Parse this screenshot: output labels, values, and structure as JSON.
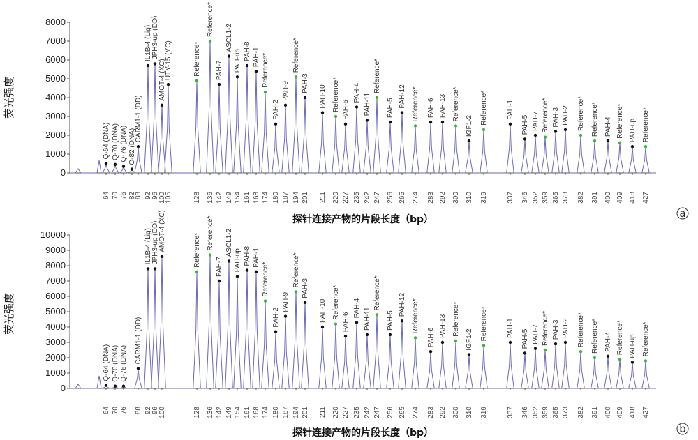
{
  "figure": {
    "panels": [
      "a",
      "b"
    ]
  },
  "chart_data": [
    {
      "type": "line",
      "panel_label": "a",
      "ylabel": "荧光强度",
      "xlabel": "探针连接产物的片段长度（bp）",
      "ylim": [
        0,
        8000
      ],
      "yticks": [
        0,
        1000,
        2000,
        3000,
        4000,
        5000,
        6000,
        7000,
        8000
      ],
      "x_ticks": [
        64,
        70,
        76,
        82,
        88,
        92,
        96,
        100,
        105,
        128,
        136,
        142,
        149,
        154,
        161,
        168,
        174,
        180,
        187,
        194,
        201,
        211,
        220,
        227,
        235,
        242,
        247,
        256,
        265,
        274,
        283,
        292,
        300,
        310,
        319,
        337,
        346,
        352,
        359,
        365,
        373,
        382,
        391,
        400,
        409,
        418,
        427
      ],
      "peaks": [
        {
          "x": 64,
          "y": 500,
          "label": "Q-64 (DNA)",
          "ref": false
        },
        {
          "x": 70,
          "y": 450,
          "label": "Q-70 (DNA)",
          "ref": false
        },
        {
          "x": 76,
          "y": 350,
          "label": "Q-76 (DNA)",
          "ref": false
        },
        {
          "x": 82,
          "y": 200,
          "label": "Q-82 (DNA)",
          "ref": false
        },
        {
          "x": 88,
          "y": 1400,
          "label": "CARM1-1 (DD)",
          "ref": false
        },
        {
          "x": 92,
          "y": 5700,
          "label": "IL1B-4 (Lig)",
          "ref": false
        },
        {
          "x": 96,
          "y": 5800,
          "label": "JPH3-up (DD)",
          "ref": false
        },
        {
          "x": 100,
          "y": 3600,
          "label": "AMOT-4 (XC)",
          "ref": false
        },
        {
          "x": 105,
          "y": 4700,
          "label": "UTY-15 (YC)",
          "ref": false
        },
        {
          "x": 128,
          "y": 4900,
          "label": "Reference*",
          "ref": true
        },
        {
          "x": 136,
          "y": 7000,
          "label": "Reference*",
          "ref": true
        },
        {
          "x": 142,
          "y": 4700,
          "label": "PAH-7",
          "ref": false
        },
        {
          "x": 149,
          "y": 6200,
          "label": "ASCL1-2",
          "ref": false
        },
        {
          "x": 154,
          "y": 5100,
          "label": "PAH-up",
          "ref": false
        },
        {
          "x": 161,
          "y": 5700,
          "label": "PAH-8",
          "ref": false
        },
        {
          "x": 168,
          "y": 5400,
          "label": "PAH-1",
          "ref": false
        },
        {
          "x": 174,
          "y": 4300,
          "label": "Reference*",
          "ref": true
        },
        {
          "x": 180,
          "y": 2600,
          "label": "PAH-2",
          "ref": false
        },
        {
          "x": 187,
          "y": 3600,
          "label": "PAH-9",
          "ref": false
        },
        {
          "x": 194,
          "y": 5100,
          "label": "Reference*",
          "ref": true
        },
        {
          "x": 201,
          "y": 4000,
          "label": "PAH-3",
          "ref": false
        },
        {
          "x": 211,
          "y": 3200,
          "label": "PAH-10",
          "ref": false
        },
        {
          "x": 220,
          "y": 3000,
          "label": "Reference*",
          "ref": true
        },
        {
          "x": 227,
          "y": 2600,
          "label": "PAH-6",
          "ref": false
        },
        {
          "x": 235,
          "y": 3500,
          "label": "PAH-4",
          "ref": false
        },
        {
          "x": 242,
          "y": 2800,
          "label": "PAH-11",
          "ref": false
        },
        {
          "x": 247,
          "y": 4000,
          "label": "Reference*",
          "ref": true
        },
        {
          "x": 256,
          "y": 2700,
          "label": "PAH-5",
          "ref": false
        },
        {
          "x": 265,
          "y": 3200,
          "label": "PAH-12",
          "ref": false
        },
        {
          "x": 274,
          "y": 2500,
          "label": "Reference*",
          "ref": true
        },
        {
          "x": 283,
          "y": 2700,
          "label": "PAH-6",
          "ref": false
        },
        {
          "x": 292,
          "y": 2700,
          "label": "PAH-13",
          "ref": false
        },
        {
          "x": 300,
          "y": 2500,
          "label": "Reference*",
          "ref": true
        },
        {
          "x": 310,
          "y": 1700,
          "label": "IGF1-2",
          "ref": false
        },
        {
          "x": 319,
          "y": 2300,
          "label": "Reference*",
          "ref": true
        },
        {
          "x": 337,
          "y": 2600,
          "label": "PAH-1",
          "ref": false
        },
        {
          "x": 346,
          "y": 1800,
          "label": "PAH-5",
          "ref": false
        },
        {
          "x": 352,
          "y": 2000,
          "label": "PAH-7",
          "ref": false
        },
        {
          "x": 359,
          "y": 1900,
          "label": "Reference*",
          "ref": true
        },
        {
          "x": 365,
          "y": 2200,
          "label": "PAH-3",
          "ref": false
        },
        {
          "x": 373,
          "y": 2300,
          "label": "PAH-2",
          "ref": false
        },
        {
          "x": 382,
          "y": 2000,
          "label": "Reference*",
          "ref": true
        },
        {
          "x": 391,
          "y": 1700,
          "label": "Reference*",
          "ref": true
        },
        {
          "x": 400,
          "y": 1700,
          "label": "PAH-4",
          "ref": false
        },
        {
          "x": 409,
          "y": 1600,
          "label": "Reference*",
          "ref": true
        },
        {
          "x": 418,
          "y": 1400,
          "label": "PAH-up",
          "ref": false
        },
        {
          "x": 427,
          "y": 1400,
          "label": "Reference*",
          "ref": true
        }
      ]
    },
    {
      "type": "line",
      "panel_label": "b",
      "ylabel": "荧光强度",
      "xlabel": "探针连接产物的片段长度（bp）",
      "ylim": [
        0,
        10000
      ],
      "yticks": [
        0,
        1000,
        2000,
        3000,
        4000,
        5000,
        6000,
        7000,
        8000,
        9000,
        10000
      ],
      "x_ticks": [
        64,
        70,
        76,
        88,
        92,
        96,
        100,
        128,
        136,
        142,
        149,
        154,
        161,
        168,
        174,
        180,
        187,
        194,
        201,
        211,
        220,
        227,
        235,
        242,
        247,
        256,
        265,
        274,
        283,
        292,
        300,
        310,
        319,
        337,
        346,
        352,
        359,
        365,
        373,
        382,
        391,
        400,
        409,
        418,
        427
      ],
      "peaks": [
        {
          "x": 64,
          "y": 200,
          "label": "Q-64 (DNA)",
          "ref": false
        },
        {
          "x": 70,
          "y": 150,
          "label": "Q-70 (DNA)",
          "ref": false
        },
        {
          "x": 76,
          "y": 150,
          "label": "Q-76 (DNA)",
          "ref": false
        },
        {
          "x": 88,
          "y": 1300,
          "label": "CARM1-1 (DD)",
          "ref": false
        },
        {
          "x": 92,
          "y": 7800,
          "label": "IL1B-4 (Lig)",
          "ref": false
        },
        {
          "x": 96,
          "y": 7800,
          "label": "JPH3-up (DD)",
          "ref": false
        },
        {
          "x": 100,
          "y": 8600,
          "label": "AMOT-4 (XC)",
          "ref": false
        },
        {
          "x": 128,
          "y": 7600,
          "label": "Reference*",
          "ref": true
        },
        {
          "x": 136,
          "y": 8700,
          "label": "Reference*",
          "ref": true
        },
        {
          "x": 142,
          "y": 7000,
          "label": "PAH-7",
          "ref": false
        },
        {
          "x": 149,
          "y": 8300,
          "label": "ASCL1-2",
          "ref": false
        },
        {
          "x": 154,
          "y": 7300,
          "label": "PAH-up",
          "ref": false
        },
        {
          "x": 161,
          "y": 7700,
          "label": "PAH-8",
          "ref": false
        },
        {
          "x": 168,
          "y": 7600,
          "label": "PAH-1",
          "ref": false
        },
        {
          "x": 174,
          "y": 5700,
          "label": "Reference*",
          "ref": true
        },
        {
          "x": 180,
          "y": 3700,
          "label": "PAH-2",
          "ref": false
        },
        {
          "x": 187,
          "y": 4700,
          "label": "PAH-9",
          "ref": false
        },
        {
          "x": 194,
          "y": 6300,
          "label": "Reference*",
          "ref": true
        },
        {
          "x": 201,
          "y": 5600,
          "label": "PAH-3",
          "ref": false
        },
        {
          "x": 211,
          "y": 4000,
          "label": "PAH-10",
          "ref": false
        },
        {
          "x": 220,
          "y": 4200,
          "label": "Reference*",
          "ref": true
        },
        {
          "x": 227,
          "y": 3400,
          "label": "PAH-6",
          "ref": false
        },
        {
          "x": 235,
          "y": 4300,
          "label": "PAH-4",
          "ref": false
        },
        {
          "x": 242,
          "y": 3500,
          "label": "PAH-11",
          "ref": false
        },
        {
          "x": 247,
          "y": 4800,
          "label": "Reference*",
          "ref": true
        },
        {
          "x": 256,
          "y": 3500,
          "label": "PAH-5",
          "ref": false
        },
        {
          "x": 265,
          "y": 4400,
          "label": "PAH-12",
          "ref": false
        },
        {
          "x": 274,
          "y": 3300,
          "label": "Reference*",
          "ref": true
        },
        {
          "x": 283,
          "y": 2400,
          "label": "PAH-6",
          "ref": false
        },
        {
          "x": 292,
          "y": 3000,
          "label": "PAH-13",
          "ref": false
        },
        {
          "x": 300,
          "y": 3100,
          "label": "Reference*",
          "ref": true
        },
        {
          "x": 310,
          "y": 2200,
          "label": "IGF1-2",
          "ref": false
        },
        {
          "x": 319,
          "y": 2800,
          "label": "Reference*",
          "ref": true
        },
        {
          "x": 337,
          "y": 3000,
          "label": "PAH-1",
          "ref": false
        },
        {
          "x": 346,
          "y": 2300,
          "label": "PAH-5",
          "ref": false
        },
        {
          "x": 352,
          "y": 2600,
          "label": "PAH-7",
          "ref": false
        },
        {
          "x": 359,
          "y": 2500,
          "label": "Reference*",
          "ref": true
        },
        {
          "x": 365,
          "y": 2900,
          "label": "PAH-3",
          "ref": false
        },
        {
          "x": 373,
          "y": 3000,
          "label": "PAH-2",
          "ref": false
        },
        {
          "x": 382,
          "y": 2400,
          "label": "Reference*",
          "ref": true
        },
        {
          "x": 391,
          "y": 2000,
          "label": "Reference*",
          "ref": true
        },
        {
          "x": 400,
          "y": 2100,
          "label": "PAH-4",
          "ref": false
        },
        {
          "x": 409,
          "y": 1900,
          "label": "Reference*",
          "ref": true
        },
        {
          "x": 418,
          "y": 1700,
          "label": "PAH-up",
          "ref": false
        },
        {
          "x": 427,
          "y": 1800,
          "label": "Reference*",
          "ref": true
        }
      ]
    }
  ],
  "colors": {
    "trace": "#6a6ab0",
    "marker": "#111111",
    "ref_marker": "#3cb43c",
    "axis": "#555555"
  }
}
